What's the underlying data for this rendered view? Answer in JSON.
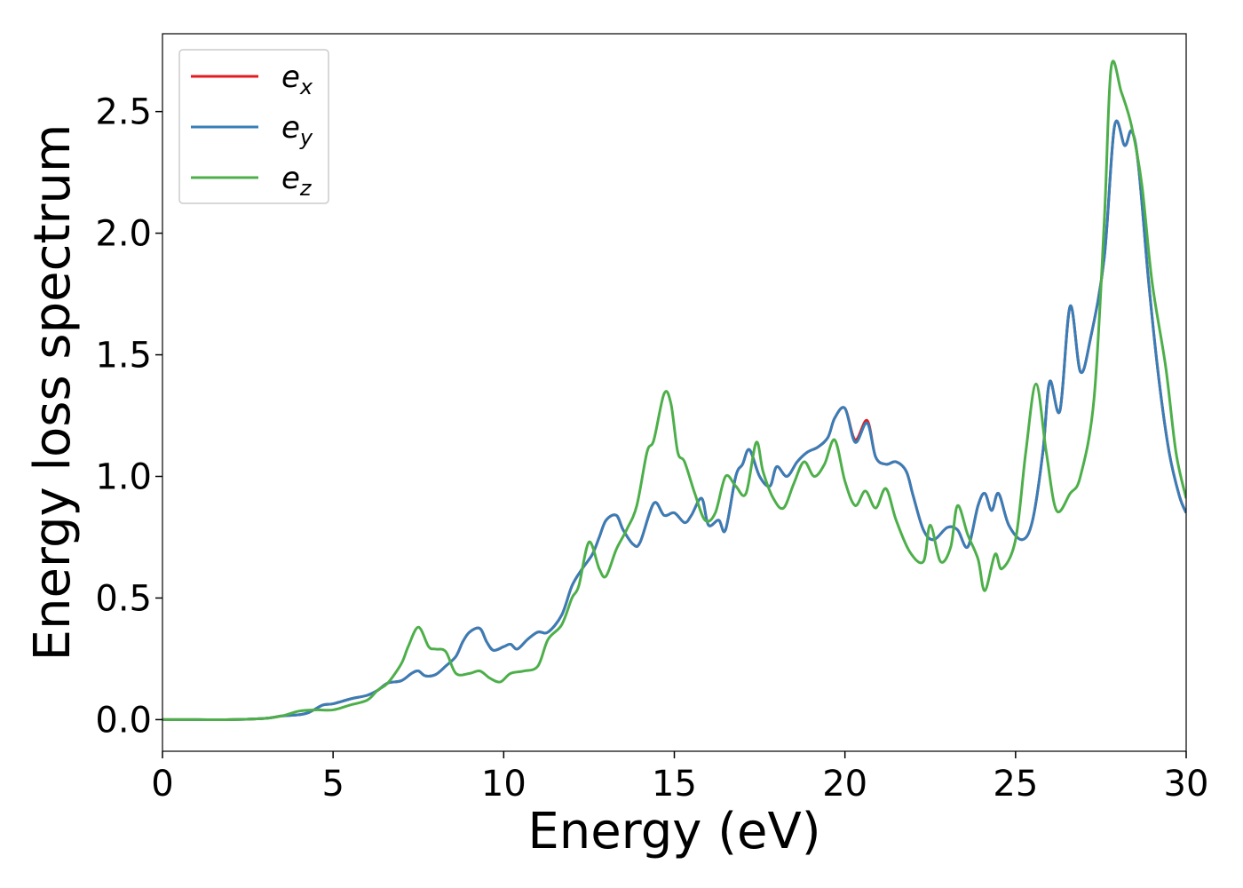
{
  "chart_data": {
    "type": "line",
    "title": "",
    "xlabel": "Energy (eV)",
    "ylabel": "Energy loss spectrum",
    "xlim": [
      0,
      30
    ],
    "ylim": [
      -0.13,
      2.82
    ],
    "xticks": [
      0,
      5,
      10,
      15,
      20,
      25,
      30
    ],
    "xtick_labels": [
      "0",
      "5",
      "10",
      "15",
      "20",
      "25",
      "30"
    ],
    "yticks": [
      0.0,
      0.5,
      1.0,
      1.5,
      2.0,
      2.5
    ],
    "ytick_labels": [
      "0.0",
      "0.5",
      "1.0",
      "1.5",
      "2.0",
      "2.5"
    ],
    "grid": false,
    "legend_position": "top-left",
    "series": [
      {
        "name": "e",
        "subscript": "x",
        "color": "#e41a1c",
        "points": [
          [
            0,
            0
          ],
          [
            1,
            0
          ],
          [
            2,
            0
          ],
          [
            3,
            0.005
          ],
          [
            3.5,
            0.015
          ],
          [
            4,
            0.02
          ],
          [
            4.3,
            0.03
          ],
          [
            4.7,
            0.06
          ],
          [
            5,
            0.065
          ],
          [
            5.5,
            0.085
          ],
          [
            6,
            0.1
          ],
          [
            6.3,
            0.12
          ],
          [
            6.6,
            0.15
          ],
          [
            7,
            0.16
          ],
          [
            7.3,
            0.19
          ],
          [
            7.5,
            0.2
          ],
          [
            7.7,
            0.18
          ],
          [
            8,
            0.185
          ],
          [
            8.3,
            0.22
          ],
          [
            8.6,
            0.26
          ],
          [
            8.8,
            0.32
          ],
          [
            9,
            0.36
          ],
          [
            9.3,
            0.375
          ],
          [
            9.5,
            0.32
          ],
          [
            9.7,
            0.285
          ],
          [
            10,
            0.3
          ],
          [
            10.2,
            0.31
          ],
          [
            10.4,
            0.29
          ],
          [
            10.7,
            0.33
          ],
          [
            11,
            0.36
          ],
          [
            11.3,
            0.36
          ],
          [
            11.7,
            0.43
          ],
          [
            12,
            0.55
          ],
          [
            12.3,
            0.62
          ],
          [
            12.6,
            0.68
          ],
          [
            12.8,
            0.75
          ],
          [
            13,
            0.82
          ],
          [
            13.3,
            0.84
          ],
          [
            13.5,
            0.78
          ],
          [
            13.8,
            0.72
          ],
          [
            14,
            0.73
          ],
          [
            14.4,
            0.89
          ],
          [
            14.7,
            0.84
          ],
          [
            15,
            0.85
          ],
          [
            15.3,
            0.81
          ],
          [
            15.5,
            0.84
          ],
          [
            15.8,
            0.91
          ],
          [
            16,
            0.8
          ],
          [
            16.3,
            0.82
          ],
          [
            16.5,
            0.78
          ],
          [
            16.8,
            1.0
          ],
          [
            17,
            1.05
          ],
          [
            17.2,
            1.11
          ],
          [
            17.5,
            1.0
          ],
          [
            17.8,
            0.96
          ],
          [
            18,
            1.04
          ],
          [
            18.3,
            1.0
          ],
          [
            18.6,
            1.06
          ],
          [
            18.9,
            1.1
          ],
          [
            19.2,
            1.12
          ],
          [
            19.5,
            1.16
          ],
          [
            19.7,
            1.24
          ],
          [
            20,
            1.28
          ],
          [
            20.3,
            1.15
          ],
          [
            20.65,
            1.23
          ],
          [
            20.9,
            1.08
          ],
          [
            21.2,
            1.05
          ],
          [
            21.5,
            1.06
          ],
          [
            21.8,
            1.02
          ],
          [
            22,
            0.92
          ],
          [
            22.3,
            0.78
          ],
          [
            22.6,
            0.74
          ],
          [
            23,
            0.79
          ],
          [
            23.3,
            0.78
          ],
          [
            23.6,
            0.71
          ],
          [
            23.9,
            0.88
          ],
          [
            24.1,
            0.93
          ],
          [
            24.3,
            0.86
          ],
          [
            24.5,
            0.93
          ],
          [
            24.8,
            0.8
          ],
          [
            25.2,
            0.74
          ],
          [
            25.5,
            0.82
          ],
          [
            25.8,
            1.1
          ],
          [
            26,
            1.39
          ],
          [
            26.3,
            1.27
          ],
          [
            26.6,
            1.7
          ],
          [
            26.9,
            1.43
          ],
          [
            27.2,
            1.57
          ],
          [
            27.6,
            1.9
          ],
          [
            27.9,
            2.44
          ],
          [
            28.2,
            2.36
          ],
          [
            28.4,
            2.42
          ],
          [
            28.6,
            2.28
          ],
          [
            28.9,
            1.8
          ],
          [
            29.2,
            1.4
          ],
          [
            29.5,
            1.1
          ],
          [
            29.8,
            0.92
          ],
          [
            30,
            0.85
          ]
        ]
      },
      {
        "name": "e",
        "subscript": "y",
        "color": "#377eb8",
        "points": [
          [
            0,
            0
          ],
          [
            1,
            0
          ],
          [
            2,
            0
          ],
          [
            3,
            0.005
          ],
          [
            3.5,
            0.015
          ],
          [
            4,
            0.02
          ],
          [
            4.3,
            0.03
          ],
          [
            4.7,
            0.06
          ],
          [
            5,
            0.065
          ],
          [
            5.5,
            0.085
          ],
          [
            6,
            0.1
          ],
          [
            6.3,
            0.12
          ],
          [
            6.6,
            0.15
          ],
          [
            7,
            0.16
          ],
          [
            7.3,
            0.19
          ],
          [
            7.5,
            0.2
          ],
          [
            7.7,
            0.18
          ],
          [
            8,
            0.185
          ],
          [
            8.3,
            0.22
          ],
          [
            8.6,
            0.26
          ],
          [
            8.8,
            0.32
          ],
          [
            9,
            0.36
          ],
          [
            9.3,
            0.375
          ],
          [
            9.5,
            0.32
          ],
          [
            9.7,
            0.285
          ],
          [
            10,
            0.3
          ],
          [
            10.2,
            0.31
          ],
          [
            10.4,
            0.29
          ],
          [
            10.7,
            0.33
          ],
          [
            11,
            0.36
          ],
          [
            11.3,
            0.36
          ],
          [
            11.7,
            0.43
          ],
          [
            12,
            0.55
          ],
          [
            12.3,
            0.62
          ],
          [
            12.6,
            0.68
          ],
          [
            12.8,
            0.75
          ],
          [
            13,
            0.82
          ],
          [
            13.3,
            0.84
          ],
          [
            13.5,
            0.78
          ],
          [
            13.8,
            0.72
          ],
          [
            14,
            0.73
          ],
          [
            14.4,
            0.89
          ],
          [
            14.7,
            0.84
          ],
          [
            15,
            0.85
          ],
          [
            15.3,
            0.81
          ],
          [
            15.5,
            0.84
          ],
          [
            15.8,
            0.91
          ],
          [
            16,
            0.8
          ],
          [
            16.3,
            0.82
          ],
          [
            16.5,
            0.78
          ],
          [
            16.8,
            1.0
          ],
          [
            17,
            1.05
          ],
          [
            17.2,
            1.11
          ],
          [
            17.5,
            1.0
          ],
          [
            17.8,
            0.96
          ],
          [
            18,
            1.04
          ],
          [
            18.3,
            1.0
          ],
          [
            18.6,
            1.06
          ],
          [
            18.9,
            1.1
          ],
          [
            19.2,
            1.12
          ],
          [
            19.5,
            1.16
          ],
          [
            19.7,
            1.24
          ],
          [
            20,
            1.28
          ],
          [
            20.3,
            1.14
          ],
          [
            20.65,
            1.22
          ],
          [
            20.9,
            1.08
          ],
          [
            21.2,
            1.05
          ],
          [
            21.5,
            1.06
          ],
          [
            21.8,
            1.02
          ],
          [
            22,
            0.92
          ],
          [
            22.3,
            0.78
          ],
          [
            22.6,
            0.74
          ],
          [
            23,
            0.79
          ],
          [
            23.3,
            0.78
          ],
          [
            23.6,
            0.71
          ],
          [
            23.9,
            0.88
          ],
          [
            24.1,
            0.93
          ],
          [
            24.3,
            0.86
          ],
          [
            24.5,
            0.93
          ],
          [
            24.8,
            0.8
          ],
          [
            25.2,
            0.74
          ],
          [
            25.5,
            0.82
          ],
          [
            25.8,
            1.1
          ],
          [
            26,
            1.39
          ],
          [
            26.3,
            1.27
          ],
          [
            26.6,
            1.7
          ],
          [
            26.9,
            1.43
          ],
          [
            27.2,
            1.57
          ],
          [
            27.6,
            1.9
          ],
          [
            27.9,
            2.44
          ],
          [
            28.2,
            2.36
          ],
          [
            28.4,
            2.42
          ],
          [
            28.6,
            2.28
          ],
          [
            28.9,
            1.8
          ],
          [
            29.2,
            1.4
          ],
          [
            29.5,
            1.1
          ],
          [
            29.8,
            0.92
          ],
          [
            30,
            0.85
          ]
        ]
      },
      {
        "name": "e",
        "subscript": "z",
        "color": "#4daf4a",
        "points": [
          [
            0,
            0
          ],
          [
            1,
            0
          ],
          [
            2,
            0
          ],
          [
            3,
            0.005
          ],
          [
            3.5,
            0.015
          ],
          [
            4,
            0.035
          ],
          [
            4.5,
            0.04
          ],
          [
            5,
            0.04
          ],
          [
            5.5,
            0.06
          ],
          [
            6,
            0.08
          ],
          [
            6.3,
            0.12
          ],
          [
            6.6,
            0.15
          ],
          [
            7,
            0.23
          ],
          [
            7.2,
            0.3
          ],
          [
            7.5,
            0.38
          ],
          [
            7.8,
            0.3
          ],
          [
            8,
            0.29
          ],
          [
            8.3,
            0.28
          ],
          [
            8.6,
            0.19
          ],
          [
            9,
            0.19
          ],
          [
            9.3,
            0.2
          ],
          [
            9.6,
            0.17
          ],
          [
            9.9,
            0.155
          ],
          [
            10.2,
            0.19
          ],
          [
            10.6,
            0.2
          ],
          [
            11,
            0.22
          ],
          [
            11.3,
            0.33
          ],
          [
            11.7,
            0.39
          ],
          [
            12,
            0.5
          ],
          [
            12.2,
            0.55
          ],
          [
            12.5,
            0.73
          ],
          [
            12.8,
            0.62
          ],
          [
            13,
            0.59
          ],
          [
            13.3,
            0.7
          ],
          [
            13.6,
            0.78
          ],
          [
            13.9,
            0.88
          ],
          [
            14.2,
            1.1
          ],
          [
            14.4,
            1.15
          ],
          [
            14.7,
            1.34
          ],
          [
            14.9,
            1.3
          ],
          [
            15.1,
            1.1
          ],
          [
            15.3,
            1.06
          ],
          [
            15.6,
            0.93
          ],
          [
            15.9,
            0.82
          ],
          [
            16.2,
            0.85
          ],
          [
            16.5,
            1.0
          ],
          [
            16.8,
            0.96
          ],
          [
            17.1,
            0.93
          ],
          [
            17.4,
            1.14
          ],
          [
            17.6,
            1.02
          ],
          [
            17.9,
            0.91
          ],
          [
            18.2,
            0.87
          ],
          [
            18.5,
            0.97
          ],
          [
            18.8,
            1.06
          ],
          [
            19.1,
            1.0
          ],
          [
            19.4,
            1.05
          ],
          [
            19.7,
            1.15
          ],
          [
            20,
            0.98
          ],
          [
            20.3,
            0.88
          ],
          [
            20.6,
            0.94
          ],
          [
            20.9,
            0.87
          ],
          [
            21.2,
            0.95
          ],
          [
            21.5,
            0.82
          ],
          [
            21.9,
            0.69
          ],
          [
            22.3,
            0.65
          ],
          [
            22.5,
            0.8
          ],
          [
            22.8,
            0.65
          ],
          [
            23.1,
            0.71
          ],
          [
            23.3,
            0.88
          ],
          [
            23.6,
            0.76
          ],
          [
            23.9,
            0.66
          ],
          [
            24.1,
            0.53
          ],
          [
            24.4,
            0.68
          ],
          [
            24.6,
            0.62
          ],
          [
            25,
            0.74
          ],
          [
            25.3,
            1.1
          ],
          [
            25.6,
            1.38
          ],
          [
            25.9,
            1.1
          ],
          [
            26.2,
            0.86
          ],
          [
            26.6,
            0.93
          ],
          [
            26.9,
            1.0
          ],
          [
            27.3,
            1.32
          ],
          [
            27.6,
            2.05
          ],
          [
            27.8,
            2.68
          ],
          [
            28.1,
            2.58
          ],
          [
            28.4,
            2.44
          ],
          [
            28.7,
            2.2
          ],
          [
            29,
            1.8
          ],
          [
            29.4,
            1.45
          ],
          [
            29.7,
            1.1
          ],
          [
            30,
            0.91
          ]
        ]
      }
    ]
  }
}
